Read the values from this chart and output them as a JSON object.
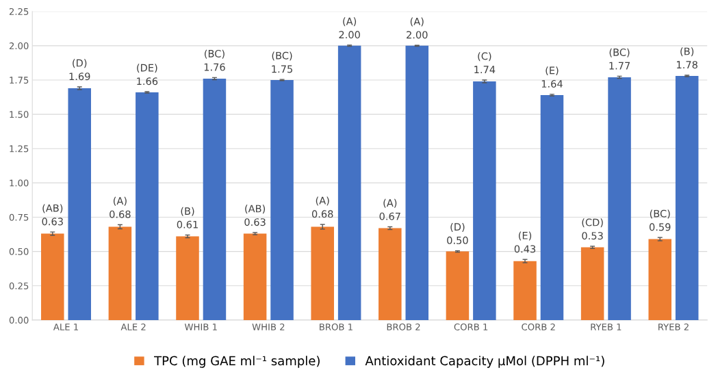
{
  "chart_data": {
    "type": "bar",
    "categories": [
      "ALE 1",
      "ALE 2",
      "WHIB 1",
      "WHIB 2",
      "BROB 1",
      "BROB 2",
      "CORB 1",
      "CORB 2",
      "RYEB 1",
      "RYEB 2"
    ],
    "series": [
      {
        "name": "TPC (mg GAE ml⁻¹ sample)",
        "color": "#ed7d31",
        "values": [
          0.63,
          0.68,
          0.61,
          0.63,
          0.68,
          0.67,
          0.5,
          0.43,
          0.53,
          0.59
        ],
        "errors": [
          0.012,
          0.015,
          0.01,
          0.008,
          0.017,
          0.01,
          0.005,
          0.012,
          0.008,
          0.012
        ],
        "value_labels": [
          "(AB)\n0.63",
          "(A)\n0.68",
          "(B)\n0.61",
          "(AB)\n0.63",
          "(A)\n0.68",
          "(A)\n0.67",
          "(D)\n0.50",
          "(E)\n0.43",
          "(CD)\n0.53",
          "(BC)\n0.59"
        ]
      },
      {
        "name": "Antioxidant Capacity µMol (DPPH ml⁻¹)",
        "color": "#4472c4",
        "values": [
          1.69,
          1.66,
          1.76,
          1.75,
          2.0,
          2.0,
          1.74,
          1.64,
          1.77,
          1.78
        ],
        "errors": [
          0.01,
          0.005,
          0.008,
          0.004,
          0.004,
          0.003,
          0.01,
          0.006,
          0.008,
          0.005
        ],
        "value_labels": [
          "(D)\n1.69",
          "(DE)\n1.66",
          "(BC)\n1.76",
          "(BC)\n1.75",
          "(A)\n2.00",
          "(A)\n2.00",
          "(C)\n1.74",
          "(E)\n1.64",
          "(BC)\n1.77",
          "(B)\n1.78"
        ]
      }
    ],
    "ylim": [
      0,
      2.25
    ],
    "yticks": [
      {
        "value": 0,
        "label": "0.00"
      },
      {
        "value": 0.25,
        "label": "0.25"
      },
      {
        "value": 0.5,
        "label": "0.50"
      },
      {
        "value": 0.75,
        "label": "0.75"
      },
      {
        "value": 1.0,
        "label": "1.00"
      },
      {
        "value": 1.25,
        "label": "1.25"
      },
      {
        "value": 1.5,
        "label": "1.50"
      },
      {
        "value": 1.75,
        "label": "1.75"
      },
      {
        "value": 2.0,
        "label": "2.00"
      },
      {
        "value": 2.25,
        "label": "2.25"
      }
    ],
    "grid": "y",
    "legend": "bottom"
  }
}
